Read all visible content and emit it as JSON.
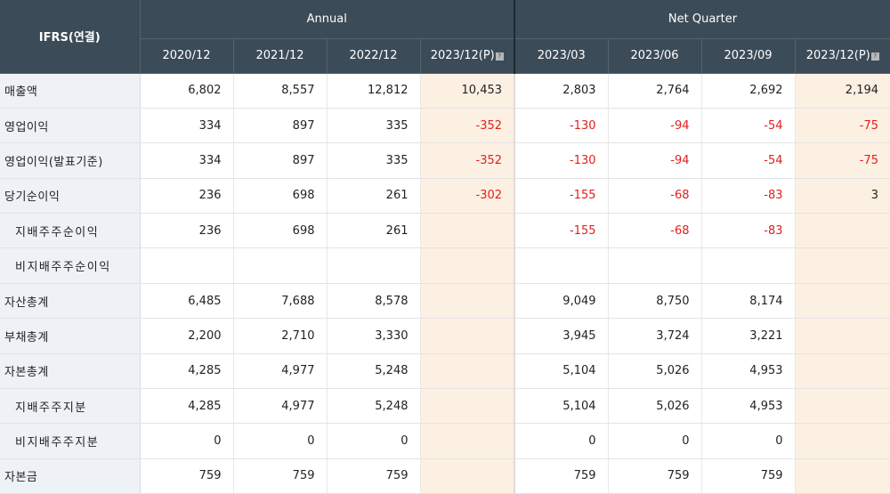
{
  "header": {
    "corner": "IFRS(연결)",
    "groups": {
      "annual": "Annual",
      "quarter": "Net Quarter"
    },
    "annual_periods": [
      "2020/12",
      "2021/12",
      "2022/12",
      "2023/12(P)"
    ],
    "quarter_periods": [
      "2023/03",
      "2023/06",
      "2023/09",
      "2023/12(P)"
    ],
    "estimate_badge_symbol": "?"
  },
  "colors": {
    "header_bg": "#3c4b58",
    "label_bg": "#eef1f5",
    "estimate_bg": "#fcf0e2",
    "negative_text": "#e02020"
  },
  "rows": [
    {
      "label": "매출액",
      "indent": false,
      "values": [
        "6,802",
        "8,557",
        "12,812",
        "10,453",
        "2,803",
        "2,764",
        "2,692",
        "2,194"
      ]
    },
    {
      "label": "영업이익",
      "indent": false,
      "values": [
        "334",
        "897",
        "335",
        "-352",
        "-130",
        "-94",
        "-54",
        "-75"
      ]
    },
    {
      "label": "영업이익(발표기준)",
      "indent": false,
      "values": [
        "334",
        "897",
        "335",
        "-352",
        "-130",
        "-94",
        "-54",
        "-75"
      ]
    },
    {
      "label": "당기순이익",
      "indent": false,
      "values": [
        "236",
        "698",
        "261",
        "-302",
        "-155",
        "-68",
        "-83",
        "3"
      ]
    },
    {
      "label": "지배주주순이익",
      "indent": true,
      "values": [
        "236",
        "698",
        "261",
        "",
        "-155",
        "-68",
        "-83",
        ""
      ]
    },
    {
      "label": "비지배주주순이익",
      "indent": true,
      "values": [
        "",
        "",
        "",
        "",
        "",
        "",
        "",
        ""
      ]
    },
    {
      "label": "자산총계",
      "indent": false,
      "values": [
        "6,485",
        "7,688",
        "8,578",
        "",
        "9,049",
        "8,750",
        "8,174",
        ""
      ]
    },
    {
      "label": "부채총계",
      "indent": false,
      "values": [
        "2,200",
        "2,710",
        "3,330",
        "",
        "3,945",
        "3,724",
        "3,221",
        ""
      ]
    },
    {
      "label": "자본총계",
      "indent": false,
      "values": [
        "4,285",
        "4,977",
        "5,248",
        "",
        "5,104",
        "5,026",
        "4,953",
        ""
      ]
    },
    {
      "label": "지배주주지분",
      "indent": true,
      "values": [
        "4,285",
        "4,977",
        "5,248",
        "",
        "5,104",
        "5,026",
        "4,953",
        ""
      ]
    },
    {
      "label": "비지배주주지분",
      "indent": true,
      "values": [
        "0",
        "0",
        "0",
        "",
        "0",
        "0",
        "0",
        ""
      ]
    },
    {
      "label": "자본금",
      "indent": false,
      "values": [
        "759",
        "759",
        "759",
        "",
        "759",
        "759",
        "759",
        ""
      ]
    }
  ]
}
